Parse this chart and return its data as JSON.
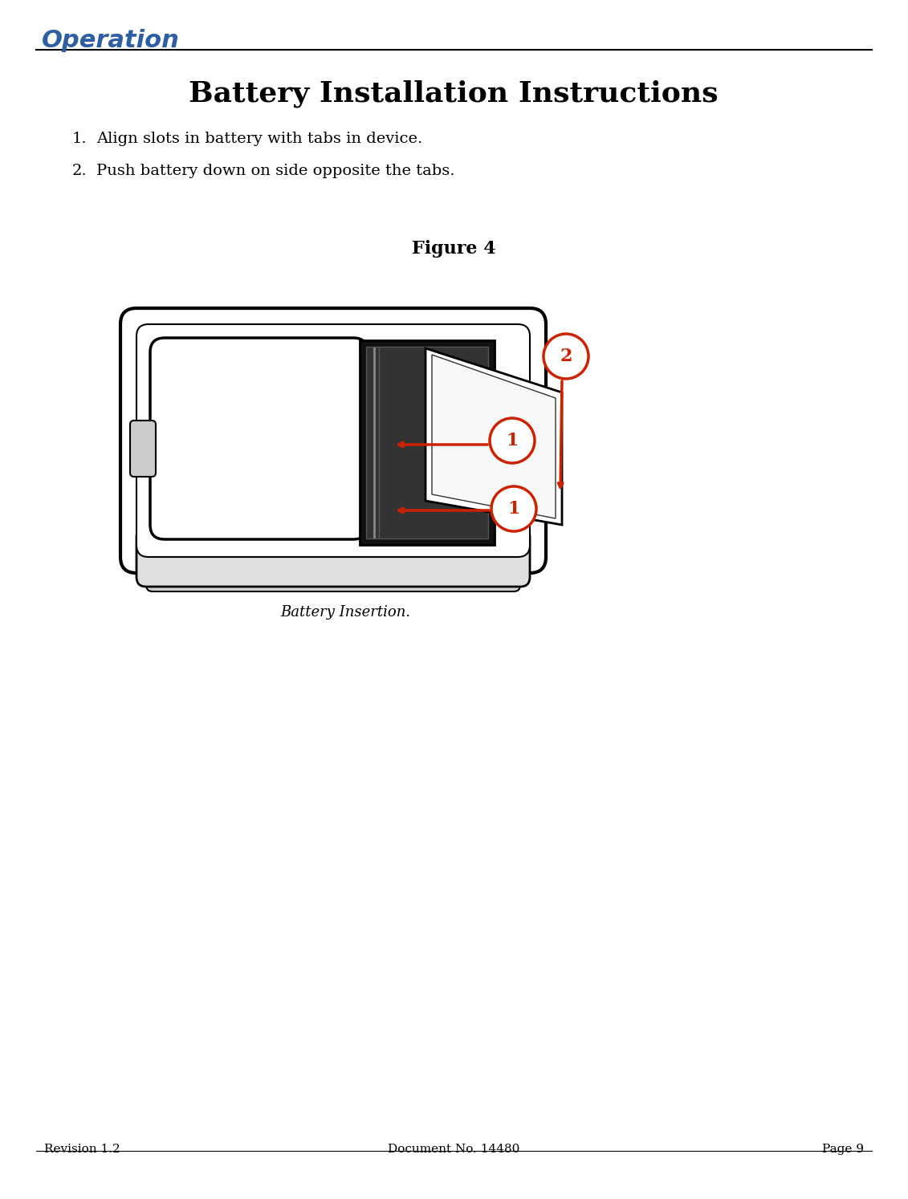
{
  "bg_color": "#ffffff",
  "header_text": "Operation",
  "header_color": "#2E5FA3",
  "header_fontsize": 22,
  "title": "Battery Installation Instructions",
  "title_fontsize": 26,
  "instructions": [
    "Align slots in battery with tabs in device.",
    "Push battery down on side opposite the tabs."
  ],
  "instruction_fontsize": 14,
  "figure_label": "Figure 4",
  "figure_label_fontsize": 16,
  "caption": "Battery Insertion.",
  "caption_fontsize": 13,
  "footer_left": "Revision 1.2",
  "footer_center": "Document No. 14480",
  "footer_right": "Page 9",
  "footer_fontsize": 11,
  "line_color": "#000000",
  "red_color": "#CC2200",
  "text_color": "#000000",
  "device_outline": "#000000",
  "device_fill": "#ffffff",
  "device_gray": "#cccccc"
}
